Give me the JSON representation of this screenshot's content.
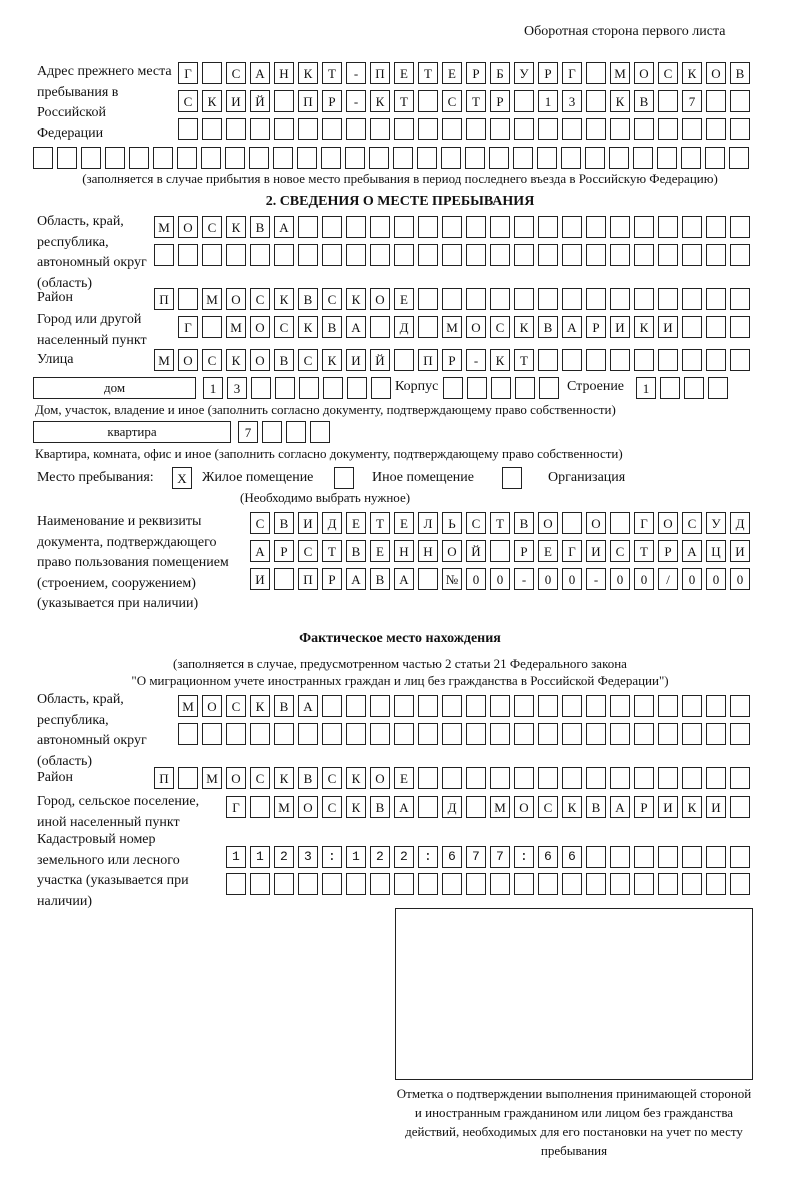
{
  "header": {
    "page_side": "Оборотная сторона первого листа"
  },
  "previous_address": {
    "label": "Адрес прежнего места пребывания в Российской Федерации",
    "rows": [
      "Г САНКТ-ПЕТЕРБУРГ МОСКОВ",
      "СКИЙ ПР-КТ СТР 13 КВ 7",
      "",
      ""
    ],
    "note": "(заполняется в случае прибытия в новое место пребывания в период последнего въезда в Российскую Федерацию)"
  },
  "section2": {
    "title": "2. СВЕДЕНИЯ О МЕСТЕ ПРЕБЫВАНИЯ",
    "region_label": "Область, край, республика, автономный округ (область)",
    "region_rows": [
      "МОСКВА",
      ""
    ],
    "district_label": "Район",
    "district": "П МОСКВСКОЕ",
    "city_label": "Город или другой населенный пункт",
    "city": "Г МОСКВА Д МОСКВАРИКИ",
    "street_label": "Улица",
    "street": "МОСКОВСКИЙ ПР-КТ",
    "house_type": "дом",
    "house_number": "13",
    "korpus_label": "Корпус",
    "korpus": "",
    "building_label": "Строение",
    "building": "1",
    "house_note": "Дом, участок, владение и иное (заполнить согласно документу, подтверждающему право собственности)",
    "apartment_type": "квартира",
    "apartment_number": "7",
    "apartment_note": "Квартира, комната, офис и иное (заполнить согласно документу, подтверждающему право собственности)",
    "stay_place_label": "Место пребывания:",
    "options": [
      {
        "label": "Жилое помещение",
        "mark": "Х",
        "checked": true
      },
      {
        "label": "Иное помещение",
        "mark": "",
        "checked": false
      },
      {
        "label": "Организация",
        "mark": "",
        "checked": false
      }
    ],
    "options_note": "(Необходимо выбрать нужное)",
    "document_label": "Наименование и реквизиты документа, подтверждающего право пользования помещением (строением, сооружением) (указывается при наличии)",
    "document_rows": [
      "СВИДЕТЕЛЬСТВО О ГОСУД",
      "АРСТВЕННОЙ РЕГИСТРАЦИ",
      "И ПРАВА №00-00-00/000"
    ]
  },
  "actual": {
    "title": "Фактическое место нахождения",
    "note1": "(заполняется в случае, предусмотренном частью 2 статьи 21 Федерального закона",
    "note2": "\"О миграционном учете иностранных граждан и лиц без гражданства в Российской Федерации\")",
    "region_label": "Область, край, республика, автономный округ (область)",
    "region_rows": [
      "МОСКВА",
      ""
    ],
    "district_label": "Район",
    "district": "П МОСКВСКОЕ",
    "city_label": "Город, сельское поселение, иной населенный пункт",
    "city": "Г МОСКВА Д МОСКВАРИКИ",
    "cadastral_label": "Кадастровый номер земельного или лесного участка (указывается при наличии)",
    "cadastral_rows": [
      "1123:122:677:66",
      ""
    ]
  },
  "stamp_box": {
    "caption": "Отметка о подтверждении выполнения принимающей стороной и иностранным гражданином или лицом без гражданства действий, необходимых для его постановки на учет по месту пребывания"
  }
}
